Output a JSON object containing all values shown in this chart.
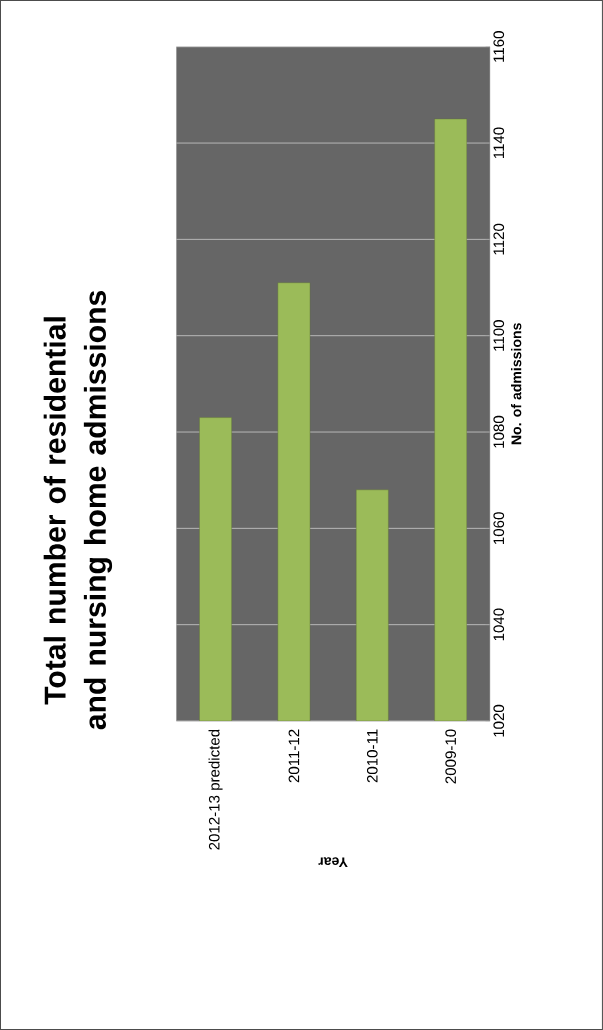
{
  "chart_data": {
    "type": "bar",
    "title": "Total number of residential and nursing home admissions",
    "xlabel": "Year",
    "ylabel": "No. of admissions",
    "categories": [
      "2012-13 predicted",
      "2011-12",
      "2010-11",
      "2009-10"
    ],
    "values": [
      1083,
      1111,
      1068,
      1145
    ],
    "color": "#9bbb59",
    "ylim": [
      1020,
      1160
    ],
    "yticks": [
      1020,
      1040,
      1060,
      1080,
      1100,
      1120,
      1140,
      1160
    ],
    "grid": "y"
  }
}
